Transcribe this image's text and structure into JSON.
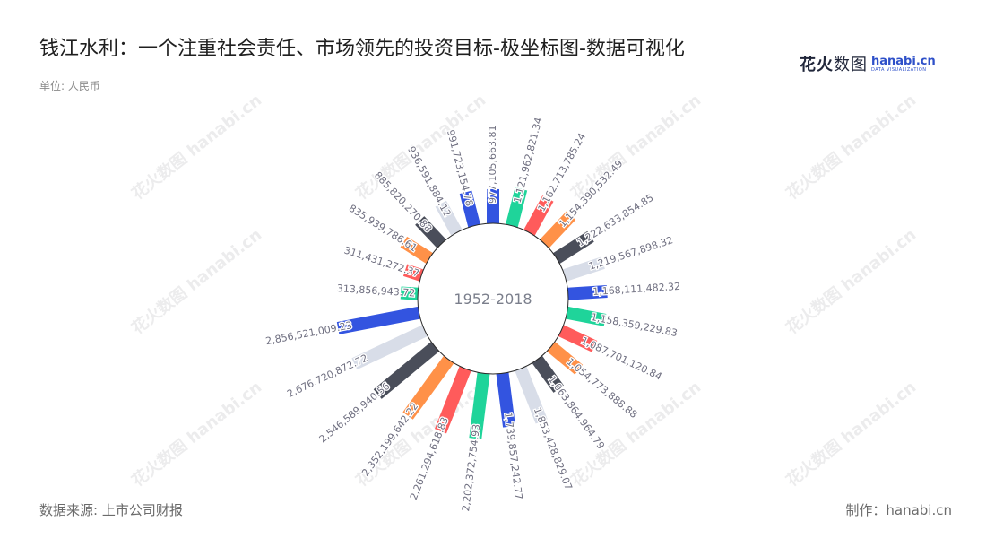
{
  "header": {
    "title": "钱江水利：一个注重社会责任、市场领先的投资目标-极坐标图-数据可视化",
    "unit": "单位: 人民币"
  },
  "logo": {
    "cn_brand": "花火",
    "cn_word": "数图",
    "en_brand": "hanabi.cn",
    "en_sub": "DATA VISUALIZATION"
  },
  "footer": {
    "source": "数据来源: 上市公司财报",
    "credit": "制作：hanabi.cn"
  },
  "chart_data": {
    "type": "polar-bar",
    "center_label": "1952-2018",
    "palette": [
      "#3354e0",
      "#1fd49a",
      "#ff5b5b",
      "#ff9148",
      "#4a4e5a",
      "#d8dde8"
    ],
    "labels": [
      "977,105,663.81",
      "1,121,962,821.34",
      "1,162,713,785.24",
      "1,154,390,532.49",
      "1,222,633,854.85",
      "1,219,567,898.32",
      "1,168,111,482.32",
      "1,158,359,229.83",
      "1,087,701,120.84",
      "1,054,773,888.88",
      "1,063,864,964.79",
      "1,853,428,829.07",
      "1,739,857,242.77",
      "2,202,372,754.93",
      "2,261,294,618.83",
      "2,352,199,642.22",
      "2,546,589,940.56",
      "2,676,720,872.72",
      "2,856,521,009.23",
      "313,856,943.72",
      "311,431,272.37",
      "835,939,786.61",
      "885,820,270.88",
      "936,591,884.12",
      "991,723,154.78"
    ],
    "values": [
      977105663.81,
      1121962821.34,
      1162713785.24,
      1154390532.49,
      1222633854.85,
      1219567898.32,
      1168111482.32,
      1158359229.83,
      1087701120.84,
      1054773888.88,
      1063864964.79,
      1853428829.07,
      1739857242.77,
      2202372754.93,
      2261294618.83,
      2352199642.22,
      2546589940.56,
      2676720872.72,
      2856521009.23,
      313856943.72,
      311431272.37,
      835939786.61,
      885820270.88,
      936591884.12,
      991723154.78
    ]
  }
}
